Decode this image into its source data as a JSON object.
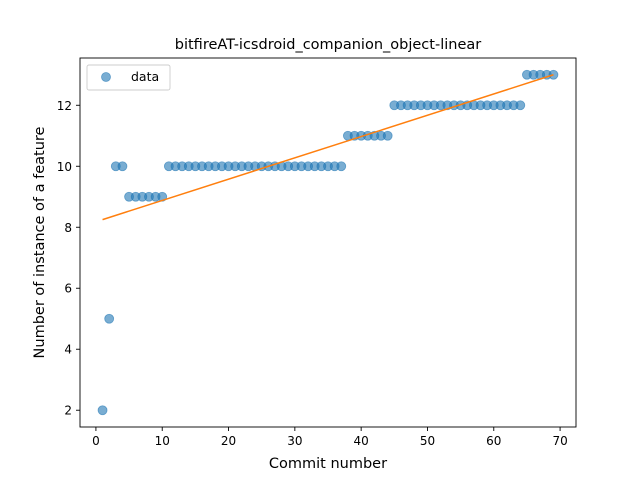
{
  "chart_data": {
    "type": "scatter",
    "title": "bitfireAT-icsdroid_companion_object-linear",
    "xlabel": "Commit number",
    "ylabel": "Number of instance of a feature",
    "xlim": [
      -2.4,
      72.4
    ],
    "ylim": [
      1.45,
      13.55
    ],
    "xticks": [
      0,
      10,
      20,
      30,
      40,
      50,
      60,
      70
    ],
    "yticks": [
      2,
      4,
      6,
      8,
      10,
      12
    ],
    "grid": false,
    "legend": {
      "position": "top-left",
      "entries": [
        "data"
      ]
    },
    "colors": {
      "points": "#1f77b4",
      "fit": "#ff7f0e"
    },
    "series": [
      {
        "name": "data",
        "kind": "scatter",
        "x": [
          1,
          2,
          3,
          4,
          5,
          6,
          7,
          8,
          9,
          10,
          11,
          12,
          13,
          14,
          15,
          16,
          17,
          18,
          19,
          20,
          21,
          22,
          23,
          24,
          25,
          26,
          27,
          28,
          29,
          30,
          31,
          32,
          33,
          34,
          35,
          36,
          37,
          38,
          39,
          40,
          41,
          42,
          43,
          44,
          45,
          46,
          47,
          48,
          49,
          50,
          51,
          52,
          53,
          54,
          55,
          56,
          57,
          58,
          59,
          60,
          61,
          62,
          63,
          64,
          65,
          66,
          67,
          68,
          69
        ],
        "y": [
          2,
          5,
          10,
          10,
          9,
          9,
          9,
          9,
          9,
          9,
          10,
          10,
          10,
          10,
          10,
          10,
          10,
          10,
          10,
          10,
          10,
          10,
          10,
          10,
          10,
          10,
          10,
          10,
          10,
          10,
          10,
          10,
          10,
          10,
          10,
          10,
          10,
          11,
          11,
          11,
          11,
          11,
          11,
          11,
          12,
          12,
          12,
          12,
          12,
          12,
          12,
          12,
          12,
          12,
          12,
          12,
          12,
          12,
          12,
          12,
          12,
          12,
          12,
          12,
          13,
          13,
          13,
          13,
          13
        ]
      },
      {
        "kind": "line",
        "x": [
          1,
          69
        ],
        "y": [
          8.25,
          13.0
        ]
      }
    ]
  }
}
